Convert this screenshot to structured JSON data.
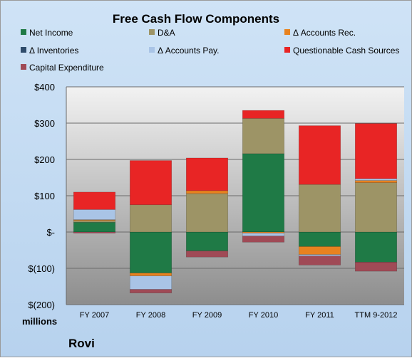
{
  "chart_data": {
    "type": "bar",
    "stacked": true,
    "title": "Free Cash Flow Components",
    "ylim": [
      -200,
      400
    ],
    "yticks": [
      400,
      300,
      200,
      100,
      0,
      -100,
      -200
    ],
    "ytick_labels": [
      "$400",
      "$300",
      "$200",
      "$100",
      "$-",
      "$(100)",
      "$(200)"
    ],
    "grid": "horizontal",
    "legend_position": "top",
    "units_label": "millions",
    "company": "Rovi",
    "categories": [
      "FY 2007",
      "FY 2008",
      "FY 2009",
      "FY 2010",
      "FY 2011",
      "TTM 9-2012"
    ],
    "series": [
      {
        "name": "Net Income",
        "color": "#1f7a46",
        "values": [
          27,
          -113,
          -52,
          216,
          -40,
          -83
        ]
      },
      {
        "name": "D&A",
        "color": "#9d9466",
        "values": [
          5,
          75,
          106,
          97,
          131,
          136
        ]
      },
      {
        "name": "Δ Accounts Rec.",
        "color": "#e8821f",
        "values": [
          2,
          -8,
          8,
          -3,
          -22,
          6
        ]
      },
      {
        "name": "Δ Inventories",
        "color": "#2f4c6b",
        "values": [
          0,
          0,
          0,
          0,
          0,
          0
        ]
      },
      {
        "name": "Δ Accounts Pay.",
        "color": "#a9c4e6",
        "values": [
          28,
          -37,
          0,
          -8,
          -4,
          5
        ]
      },
      {
        "name": "Questionable Cash Sources",
        "color": "#e82525",
        "values": [
          48,
          122,
          90,
          22,
          162,
          152
        ]
      },
      {
        "name": "Capital Expenditure",
        "color": "#a04a56",
        "values": [
          -3,
          -10,
          -17,
          -17,
          -25,
          -25
        ]
      }
    ]
  }
}
